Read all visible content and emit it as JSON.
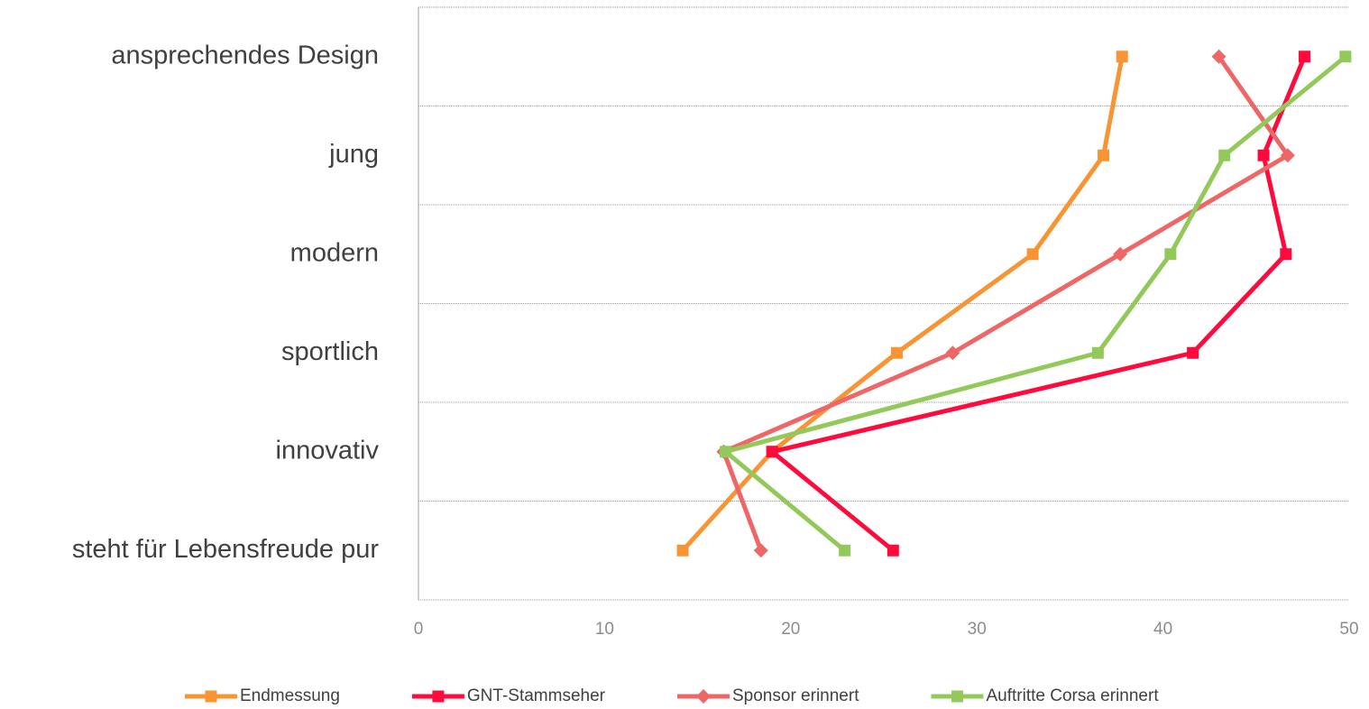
{
  "chart_data": {
    "type": "line",
    "orientation": "horizontal",
    "categories": [
      "ansprechendes Design",
      "jung",
      "modern",
      "sportlich",
      "innovativ",
      "steht für Lebensfreude pur"
    ],
    "series": [
      {
        "name": "Endmessung",
        "color": "#f79433",
        "marker": "square",
        "values": [
          37.8,
          36.8,
          33.0,
          25.7,
          19.0,
          14.2
        ]
      },
      {
        "name": "GNT-Stammseher",
        "color": "#ff0a3c",
        "marker": "square",
        "values": [
          47.6,
          45.4,
          46.6,
          41.6,
          19.0,
          25.5
        ]
      },
      {
        "name": "Sponsor erinnert",
        "color": "#ee6666",
        "marker": "diamond",
        "values": [
          43.0,
          46.7,
          37.7,
          28.7,
          16.4,
          18.4
        ]
      },
      {
        "name": "Auftritte Corsa erinnert",
        "color": "#93c95b",
        "marker": "square",
        "values": [
          49.8,
          43.3,
          40.4,
          36.5,
          16.5,
          22.9
        ]
      }
    ],
    "xlim": [
      0,
      50
    ],
    "xticks": [
      0,
      10,
      20,
      30,
      40,
      50
    ],
    "grid": true,
    "legend": "bottom"
  }
}
